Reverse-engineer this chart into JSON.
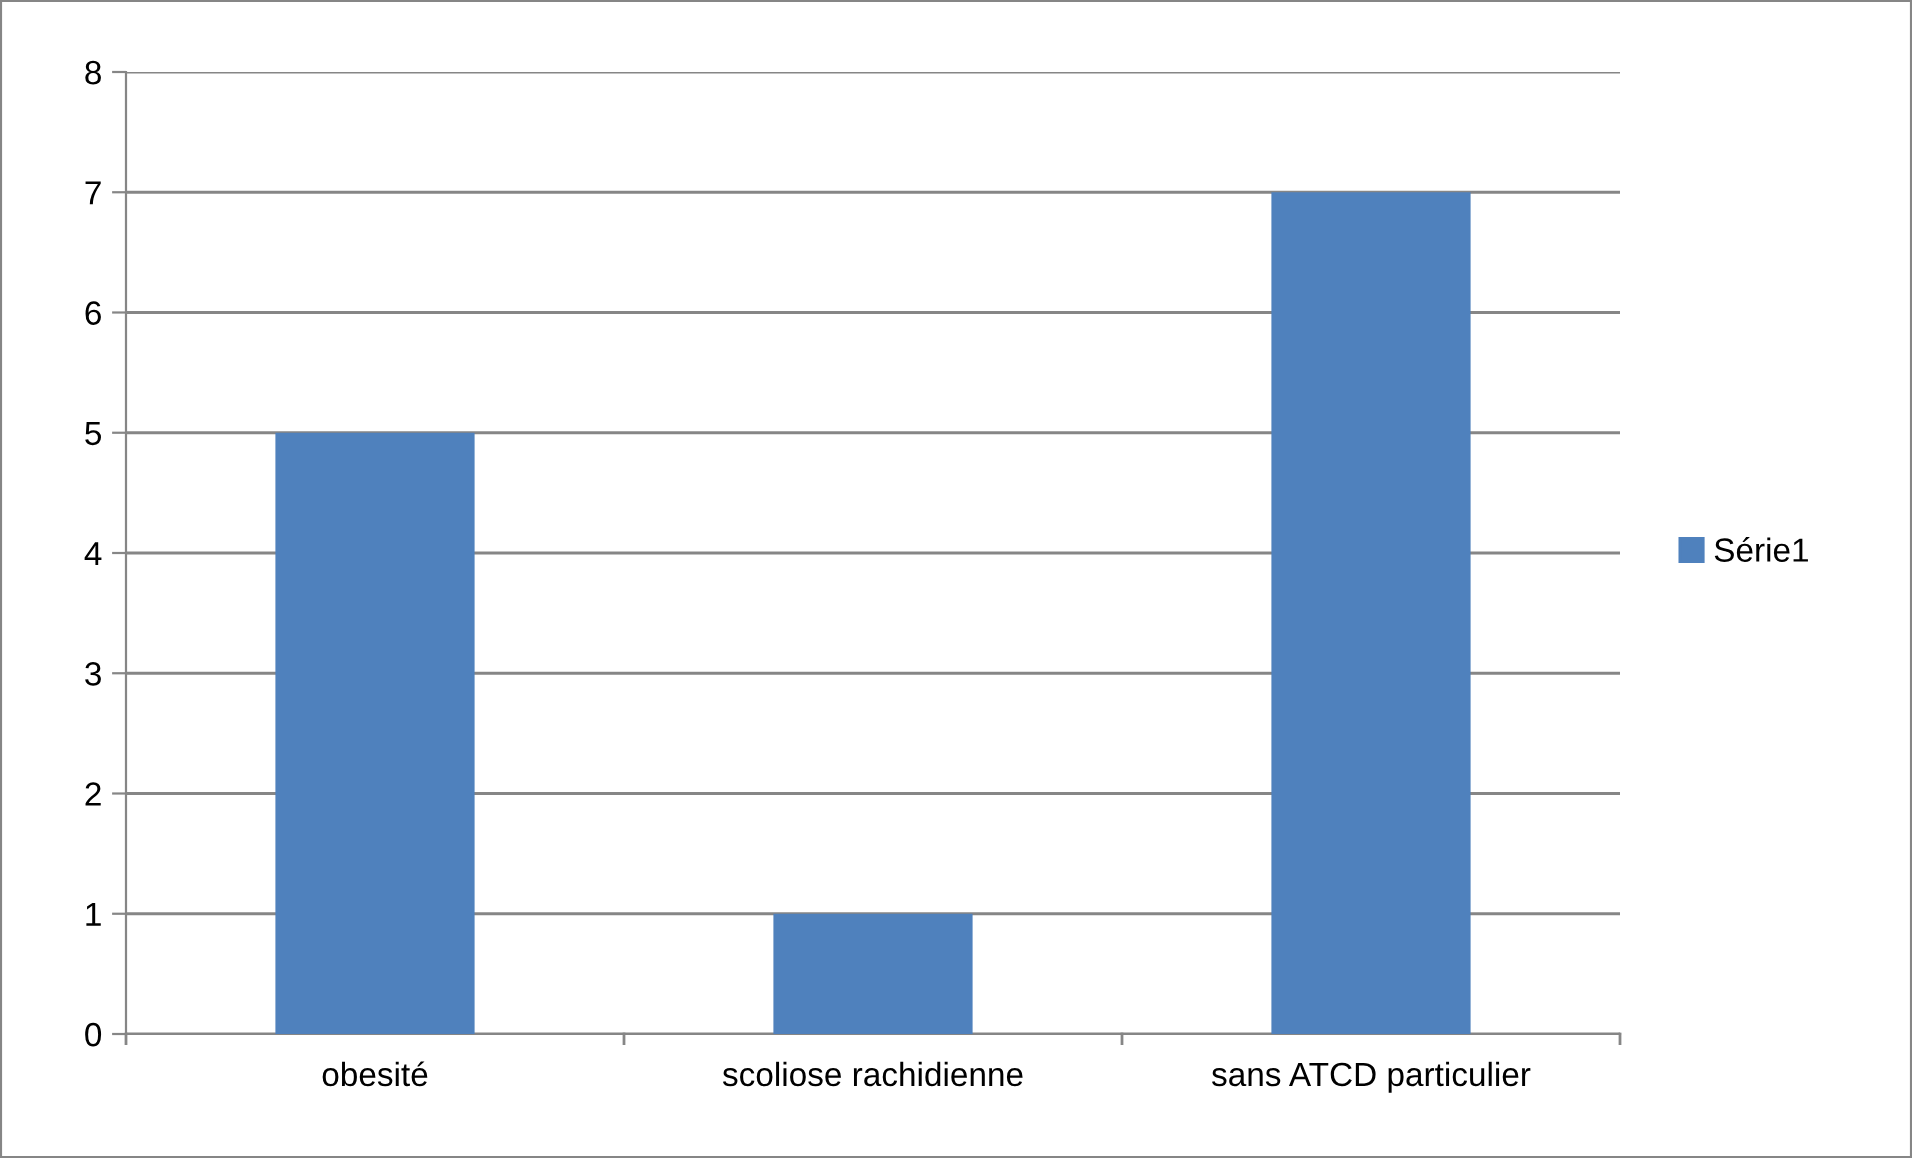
{
  "chart_data": {
    "type": "bar",
    "categories": [
      "obesité",
      "scoliose rachidienne",
      "sans ATCD particulier"
    ],
    "series": [
      {
        "name": "Série1",
        "color": "#4f81bd",
        "values": [
          5,
          1,
          7
        ]
      }
    ],
    "ylim": [
      0,
      8
    ],
    "yticks": [
      0,
      1,
      2,
      3,
      4,
      5,
      6,
      7,
      8
    ],
    "grid": "y",
    "legend": "right"
  }
}
